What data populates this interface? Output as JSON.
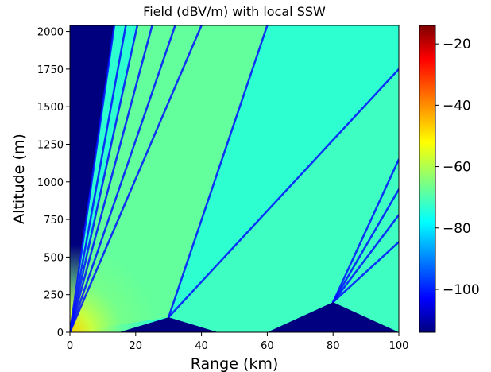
{
  "chart_data": {
    "type": "heatmap",
    "title": "Field (dBV/m) with local SSW",
    "xlabel": "Range (km)",
    "ylabel": "Altitude (m)",
    "xlim": [
      0,
      100
    ],
    "ylim": [
      0,
      2040
    ],
    "x_ticks": [
      0,
      20,
      40,
      60,
      80,
      100
    ],
    "y_ticks": [
      0,
      250,
      500,
      750,
      1000,
      1250,
      1500,
      1750,
      2000
    ],
    "colormap": "jet",
    "colorbar": {
      "min": -114,
      "max": -14,
      "ticks": [
        -20,
        -40,
        -60,
        -80,
        -100
      ]
    },
    "grid": false,
    "terrain_profile": {
      "range_km": [
        0,
        15,
        30,
        45,
        60,
        80,
        100
      ],
      "altitude_m": [
        0,
        0,
        100,
        0,
        0,
        200,
        0
      ]
    },
    "field_levels_dbv_per_m": {
      "near_source": -45,
      "main_lobe": -65,
      "background_fan": -72,
      "nulls": -100,
      "shadow_region": -114
    },
    "null_lines": [
      {
        "from_km": 0,
        "from_m": 0,
        "to_km": 13.5,
        "to_m": 2040
      },
      {
        "from_km": 0,
        "from_m": 0,
        "to_km": 17,
        "to_m": 2040
      },
      {
        "from_km": 0,
        "from_m": 0,
        "to_km": 20.5,
        "to_m": 2040
      },
      {
        "from_km": 0,
        "from_m": 0,
        "to_km": 25,
        "to_m": 2040
      },
      {
        "from_km": 0,
        "from_m": 0,
        "to_km": 32,
        "to_m": 2040
      },
      {
        "from_km": 0,
        "from_m": 0,
        "to_km": 40,
        "to_m": 2040
      },
      {
        "from_km": 30,
        "from_m": 100,
        "to_km": 60,
        "to_m": 2040
      },
      {
        "from_km": 30,
        "from_m": 100,
        "to_km": 100,
        "to_m": 1750
      },
      {
        "from_km": 80,
        "from_m": 200,
        "to_km": 100,
        "to_m": 1150
      },
      {
        "from_km": 80,
        "from_m": 200,
        "to_km": 100,
        "to_m": 950
      },
      {
        "from_km": 80,
        "from_m": 200,
        "to_km": 100,
        "to_m": 780
      },
      {
        "from_km": 80,
        "from_m": 200,
        "to_km": 100,
        "to_m": 600
      }
    ]
  }
}
